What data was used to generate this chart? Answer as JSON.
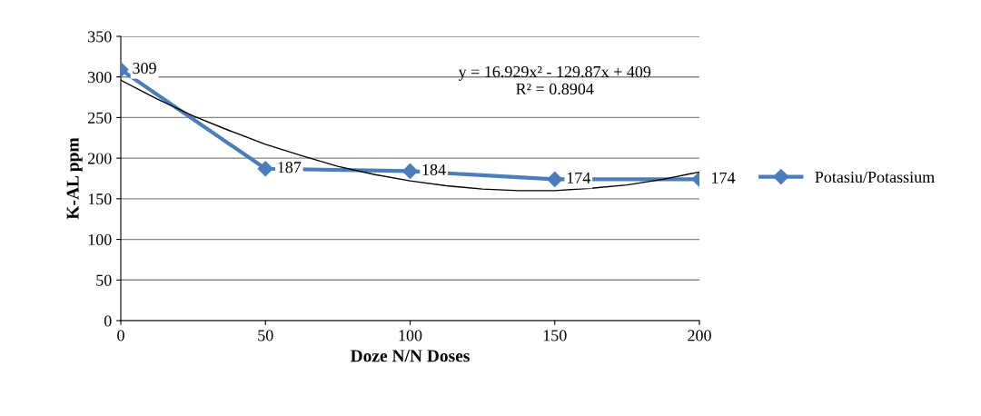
{
  "chart_data": {
    "type": "line",
    "xlabel": "Doze N/N Doses",
    "ylabel": "K-AL ppm",
    "x": [
      0,
      50,
      100,
      150,
      200
    ],
    "series": [
      {
        "name": "Potasiu/Potassium",
        "color": "#4a7ebb",
        "values": [
          309,
          187,
          184,
          174,
          174
        ],
        "marker": "diamond",
        "data_labels": true
      },
      {
        "type": "line",
        "color": "#000000",
        "x": [
          0,
          12.5,
          25,
          37.5,
          50,
          62.5,
          75,
          87.5,
          100,
          112.5,
          125,
          137.5,
          150,
          162.5,
          175,
          187.5,
          200
        ],
        "values": [
          296,
          273,
          252,
          234,
          217,
          203,
          190,
          180,
          172,
          166,
          162,
          160,
          160,
          163,
          167,
          174,
          183
        ],
        "marker": "none"
      }
    ],
    "xlim": [
      0,
      200
    ],
    "xticks": [
      0,
      50,
      100,
      150,
      200
    ],
    "ylim": [
      0,
      350
    ],
    "yticks": [
      0,
      50,
      100,
      150,
      200,
      250,
      300,
      350
    ],
    "grid": "y",
    "legend": "right",
    "line_style": "solid",
    "annotations": [
      "y = 16.929x² - 129.87x + 409\nR² = 0.8904"
    ]
  }
}
